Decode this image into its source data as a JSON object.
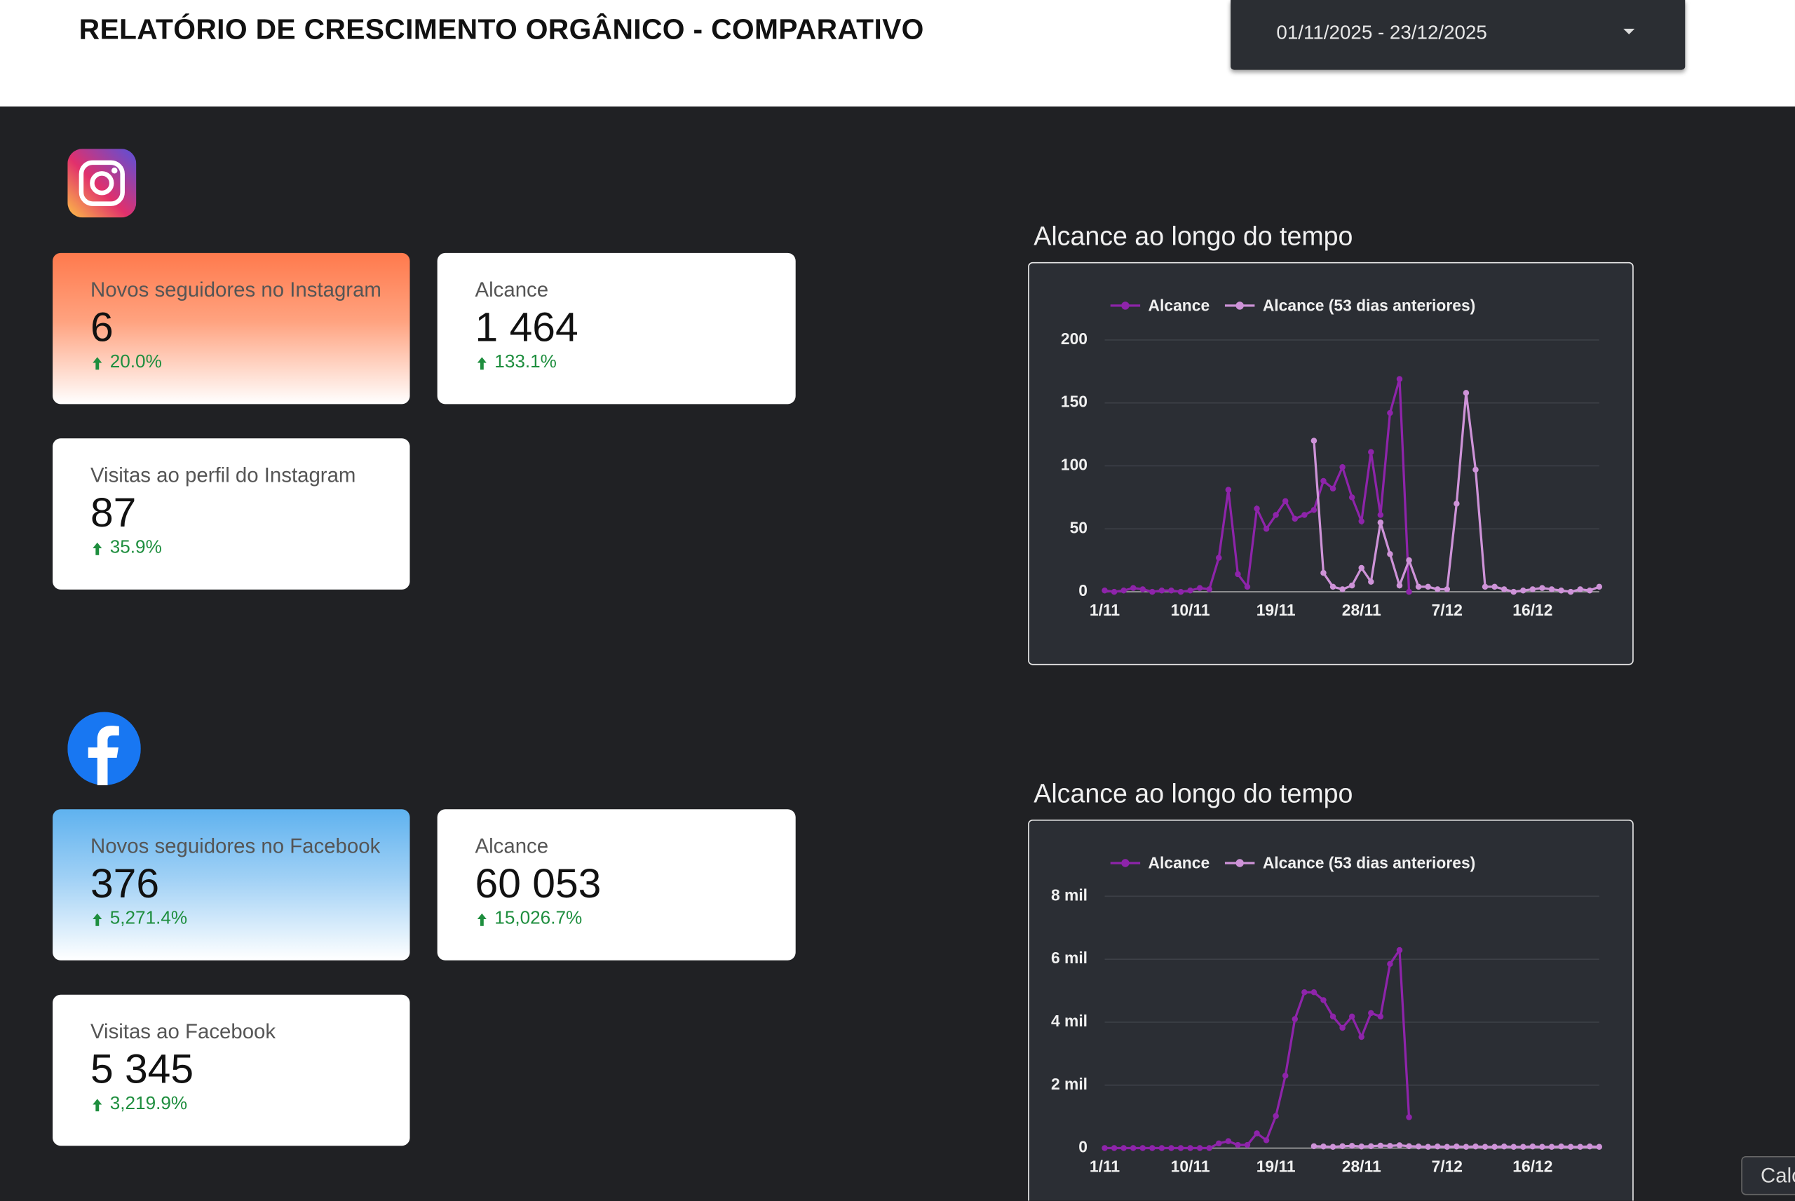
{
  "header": {
    "title": "RELATÓRIO DE CRESCIMENTO ORGÂNICO - COMPARATIVO",
    "date_range": "01/11/2025 - 23/12/2025"
  },
  "instagram": {
    "cards": [
      {
        "label": "Novos seguidores no Instagram",
        "value": "6",
        "change": "20.0%"
      },
      {
        "label": "Alcance",
        "value": "1 464",
        "change": "133.1%"
      },
      {
        "label": "Visitas ao perfil do Instagram",
        "value": "87",
        "change": "35.9%"
      }
    ]
  },
  "facebook": {
    "cards": [
      {
        "label": "Novos seguidores no Facebook",
        "value": "376",
        "change": "5,271.4%"
      },
      {
        "label": "Alcance",
        "value": "60 053",
        "change": "15,026.7%"
      },
      {
        "label": "Visitas ao Facebook",
        "value": "5 345",
        "change": "3,219.9%"
      }
    ]
  },
  "chart_data": [
    {
      "type": "line",
      "title": "Alcance ao longo do tempo",
      "categories": [
        "1/11",
        null,
        null,
        null,
        null,
        null,
        null,
        null,
        null,
        "10/11",
        null,
        null,
        null,
        null,
        null,
        null,
        null,
        null,
        "19/11",
        null,
        null,
        null,
        null,
        null,
        null,
        null,
        null,
        "28/11",
        null,
        null,
        null,
        null,
        null,
        null,
        null,
        null,
        "7/12",
        null,
        null,
        null,
        null,
        null,
        null,
        null,
        null,
        "16/12",
        null,
        null,
        null,
        null,
        null,
        null,
        null
      ],
      "series": [
        {
          "name": "Alcance",
          "color": "#8e24aa",
          "values": [
            1,
            0,
            1,
            3,
            2,
            0,
            1,
            1,
            0,
            1,
            3,
            2,
            27,
            81,
            14,
            4,
            66,
            50,
            61,
            72,
            58,
            61,
            65,
            88,
            82,
            99,
            75,
            56,
            111,
            61,
            142,
            169,
            0,
            null,
            null,
            null,
            null,
            null,
            null,
            null,
            null,
            null,
            null,
            null,
            null,
            null,
            null,
            null,
            null,
            null,
            null,
            null,
            null
          ]
        },
        {
          "name": "Alcance (53 dias anteriores)",
          "color": "#ce93d8",
          "values": [
            null,
            null,
            null,
            null,
            null,
            null,
            null,
            null,
            null,
            null,
            null,
            null,
            null,
            null,
            null,
            null,
            null,
            null,
            null,
            null,
            null,
            null,
            120,
            15,
            4,
            2,
            5,
            19,
            8,
            55,
            30,
            5,
            25,
            4,
            4,
            2,
            2,
            70,
            158,
            97,
            4,
            4,
            2,
            0,
            1,
            2,
            3,
            2,
            1,
            0,
            2,
            1,
            4
          ]
        }
      ],
      "ylim": [
        0,
        200
      ],
      "yticks": [
        0,
        50,
        100,
        150,
        200
      ],
      "grid": true,
      "legend": "top"
    },
    {
      "type": "line",
      "title": "Alcance ao longo do tempo",
      "categories": [
        "1/11",
        null,
        null,
        null,
        null,
        null,
        null,
        null,
        null,
        "10/11",
        null,
        null,
        null,
        null,
        null,
        null,
        null,
        null,
        "19/11",
        null,
        null,
        null,
        null,
        null,
        null,
        null,
        null,
        "28/11",
        null,
        null,
        null,
        null,
        null,
        null,
        null,
        null,
        "7/12",
        null,
        null,
        null,
        null,
        null,
        null,
        null,
        null,
        "16/12",
        null,
        null,
        null,
        null,
        null,
        null,
        null
      ],
      "series": [
        {
          "name": "Alcance",
          "color": "#8e24aa",
          "values": [
            0,
            0,
            0,
            0,
            0,
            0,
            0,
            0,
            0,
            0,
            0,
            0,
            150,
            220,
            100,
            100,
            470,
            250,
            1020,
            2300,
            4100,
            4950,
            4950,
            4700,
            4180,
            3820,
            4180,
            3530,
            4290,
            4180,
            5850,
            6290,
            980,
            null,
            null,
            null,
            null,
            null,
            null,
            null,
            null,
            null,
            null,
            null,
            null,
            null,
            null,
            null,
            null,
            null,
            null,
            null,
            null
          ]
        },
        {
          "name": "Alcance (53 dias anteriores)",
          "color": "#ce93d8",
          "values": [
            null,
            null,
            null,
            null,
            null,
            null,
            null,
            null,
            null,
            null,
            null,
            null,
            null,
            null,
            null,
            null,
            null,
            null,
            null,
            null,
            null,
            null,
            60,
            50,
            40,
            60,
            70,
            50,
            60,
            80,
            70,
            90,
            60,
            50,
            40,
            50,
            40,
            50,
            40,
            50,
            40,
            40,
            50,
            40,
            40,
            50,
            40,
            40,
            50,
            40,
            40,
            50,
            40
          ]
        }
      ],
      "ylim": [
        0,
        8000
      ],
      "yticks": [
        0,
        {
          "value": 2000,
          "label": "2 mil"
        },
        {
          "value": 4000,
          "label": "4 mil"
        },
        {
          "value": 6000,
          "label": "6 mil"
        },
        {
          "value": 8000,
          "label": "8 mil"
        }
      ],
      "grid": true,
      "legend": "top"
    }
  ],
  "button": "Calc"
}
